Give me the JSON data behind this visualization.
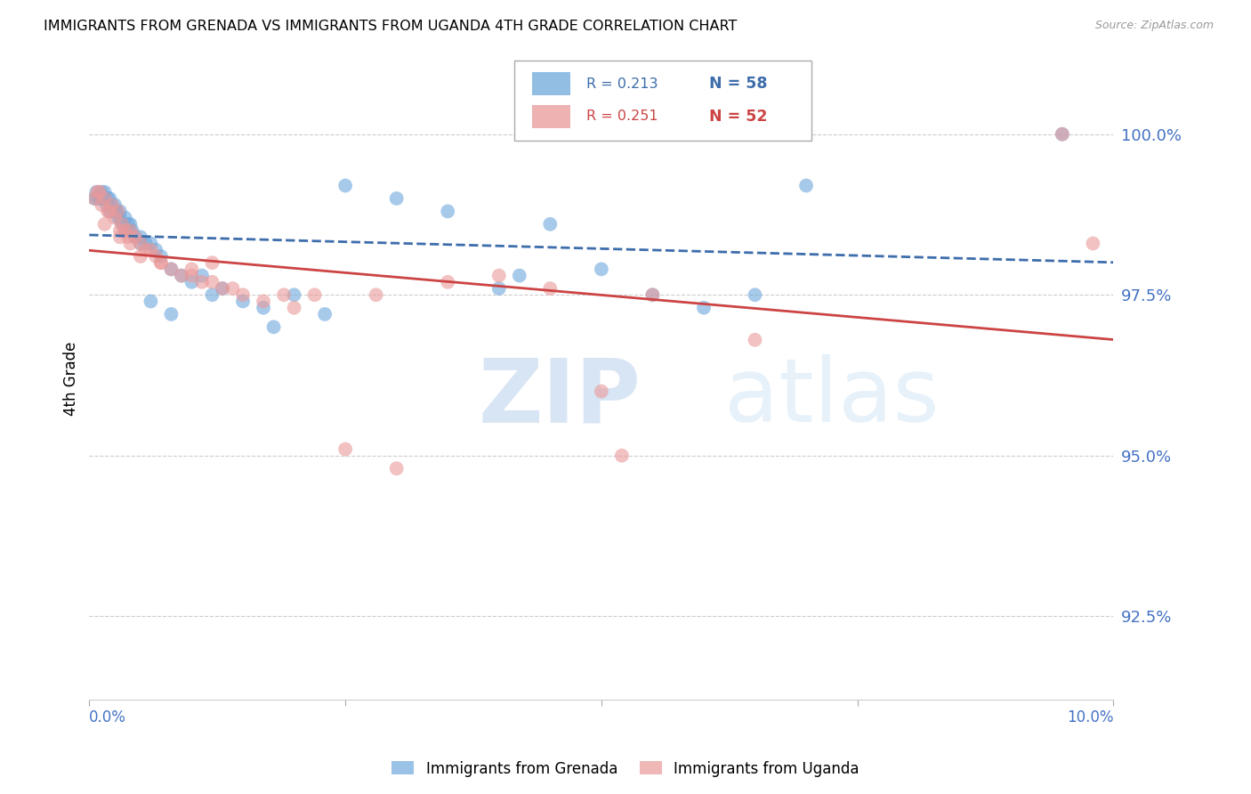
{
  "title": "IMMIGRANTS FROM GRENADA VS IMMIGRANTS FROM UGANDA 4TH GRADE CORRELATION CHART",
  "source": "Source: ZipAtlas.com",
  "ylabel": "4th Grade",
  "y_ticks": [
    92.5,
    95.0,
    97.5,
    100.0
  ],
  "y_tick_labels": [
    "92.5%",
    "95.0%",
    "97.5%",
    "100.0%"
  ],
  "x_min": 0.0,
  "x_max": 10.0,
  "y_min": 91.2,
  "y_max": 101.2,
  "legend_grenada_r": "R = 0.213",
  "legend_grenada_n": "N = 58",
  "legend_uganda_r": "R = 0.251",
  "legend_uganda_n": "N = 52",
  "color_grenada": "#6fa8dc",
  "color_uganda": "#ea9999",
  "color_trendline_grenada": "#3d6dab",
  "color_trendline_uganda": "#cc4444",
  "color_axis_labels": "#4472c4",
  "watermark_zip": "ZIP",
  "watermark_atlas": "atlas",
  "grenada_x": [
    0.05,
    0.07,
    0.08,
    0.1,
    0.12,
    0.13,
    0.15,
    0.15,
    0.17,
    0.18,
    0.2,
    0.2,
    0.22,
    0.25,
    0.25,
    0.27,
    0.28,
    0.3,
    0.3,
    0.32,
    0.35,
    0.35,
    0.38,
    0.4,
    0.4,
    0.42,
    0.45,
    0.5,
    0.5,
    0.55,
    0.6,
    0.65,
    0.7,
    0.8,
    0.9,
    1.0,
    1.1,
    1.2,
    1.3,
    1.5,
    1.7,
    2.0,
    2.3,
    2.5,
    3.0,
    3.5,
    4.0,
    4.2,
    4.5,
    5.0,
    5.5,
    6.0,
    6.5,
    7.0,
    0.6,
    0.8,
    1.8,
    9.5
  ],
  "grenada_y": [
    99.0,
    99.1,
    99.0,
    99.0,
    99.1,
    99.0,
    99.0,
    99.1,
    98.9,
    99.0,
    98.8,
    99.0,
    98.9,
    98.8,
    98.9,
    98.8,
    98.7,
    98.7,
    98.8,
    98.6,
    98.5,
    98.7,
    98.6,
    98.5,
    98.6,
    98.5,
    98.4,
    98.3,
    98.4,
    98.3,
    98.3,
    98.2,
    98.1,
    97.9,
    97.8,
    97.7,
    97.8,
    97.5,
    97.6,
    97.4,
    97.3,
    97.5,
    97.2,
    99.2,
    99.0,
    98.8,
    97.6,
    97.8,
    98.6,
    97.9,
    97.5,
    97.3,
    97.5,
    99.2,
    97.4,
    97.2,
    97.0,
    100.0
  ],
  "uganda_x": [
    0.05,
    0.08,
    0.1,
    0.12,
    0.15,
    0.18,
    0.2,
    0.22,
    0.25,
    0.28,
    0.3,
    0.32,
    0.35,
    0.38,
    0.4,
    0.4,
    0.45,
    0.5,
    0.55,
    0.6,
    0.65,
    0.7,
    0.8,
    0.9,
    1.0,
    1.1,
    1.2,
    1.3,
    1.5,
    1.7,
    1.9,
    2.0,
    2.2,
    2.5,
    3.0,
    3.5,
    4.0,
    4.5,
    5.0,
    5.5,
    0.15,
    0.3,
    0.5,
    0.7,
    1.0,
    1.2,
    1.4,
    2.8,
    5.2,
    6.5,
    9.5,
    9.8
  ],
  "uganda_y": [
    99.0,
    99.1,
    99.1,
    98.9,
    99.0,
    98.8,
    98.8,
    98.9,
    98.7,
    98.8,
    98.5,
    98.6,
    98.5,
    98.4,
    98.3,
    98.5,
    98.4,
    98.3,
    98.2,
    98.2,
    98.1,
    98.0,
    97.9,
    97.8,
    97.8,
    97.7,
    98.0,
    97.6,
    97.5,
    97.4,
    97.5,
    97.3,
    97.5,
    95.1,
    94.8,
    97.7,
    97.8,
    97.6,
    96.0,
    97.5,
    98.6,
    98.4,
    98.1,
    98.0,
    97.9,
    97.7,
    97.6,
    97.5,
    95.0,
    96.8,
    100.0,
    98.3
  ]
}
